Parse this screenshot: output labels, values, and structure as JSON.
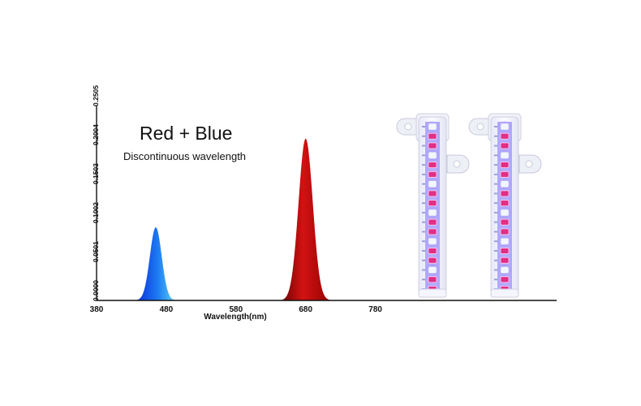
{
  "chart_data": {
    "type": "area",
    "title": "Red + Blue",
    "subtitle": "Discontinuous wavelength",
    "xlabel": "Wavelength(nm)",
    "ylabel": "",
    "xlim": [
      380,
      1040
    ],
    "ylim": [
      0,
      0.2505
    ],
    "x_ticks": [
      "380",
      "480",
      "580",
      "680",
      "780"
    ],
    "y_ticks": [
      "0.0000",
      "0.0501",
      "0.1002",
      "0.1503",
      "0.2004",
      "0.2505"
    ],
    "grid": false,
    "legend": "none",
    "series": [
      {
        "peak_nm": 465,
        "peak_value": 0.094,
        "fwhm_nm": 20,
        "colors": [
          "#0a1fd8",
          "#1d7cf2",
          "#6fe8f6"
        ]
      },
      {
        "peak_nm": 680,
        "peak_value": 0.208,
        "fwhm_nm": 24,
        "colors": [
          "#5a0000",
          "#d21212",
          "#8c0000"
        ]
      }
    ]
  },
  "product": {
    "strips": [
      {
        "name": "led-strip"
      },
      {
        "name": "led-strip"
      }
    ],
    "led_colors": {
      "white": "#f4f6ff",
      "pink": "#e02f86",
      "glow": "#7b6cff"
    }
  }
}
